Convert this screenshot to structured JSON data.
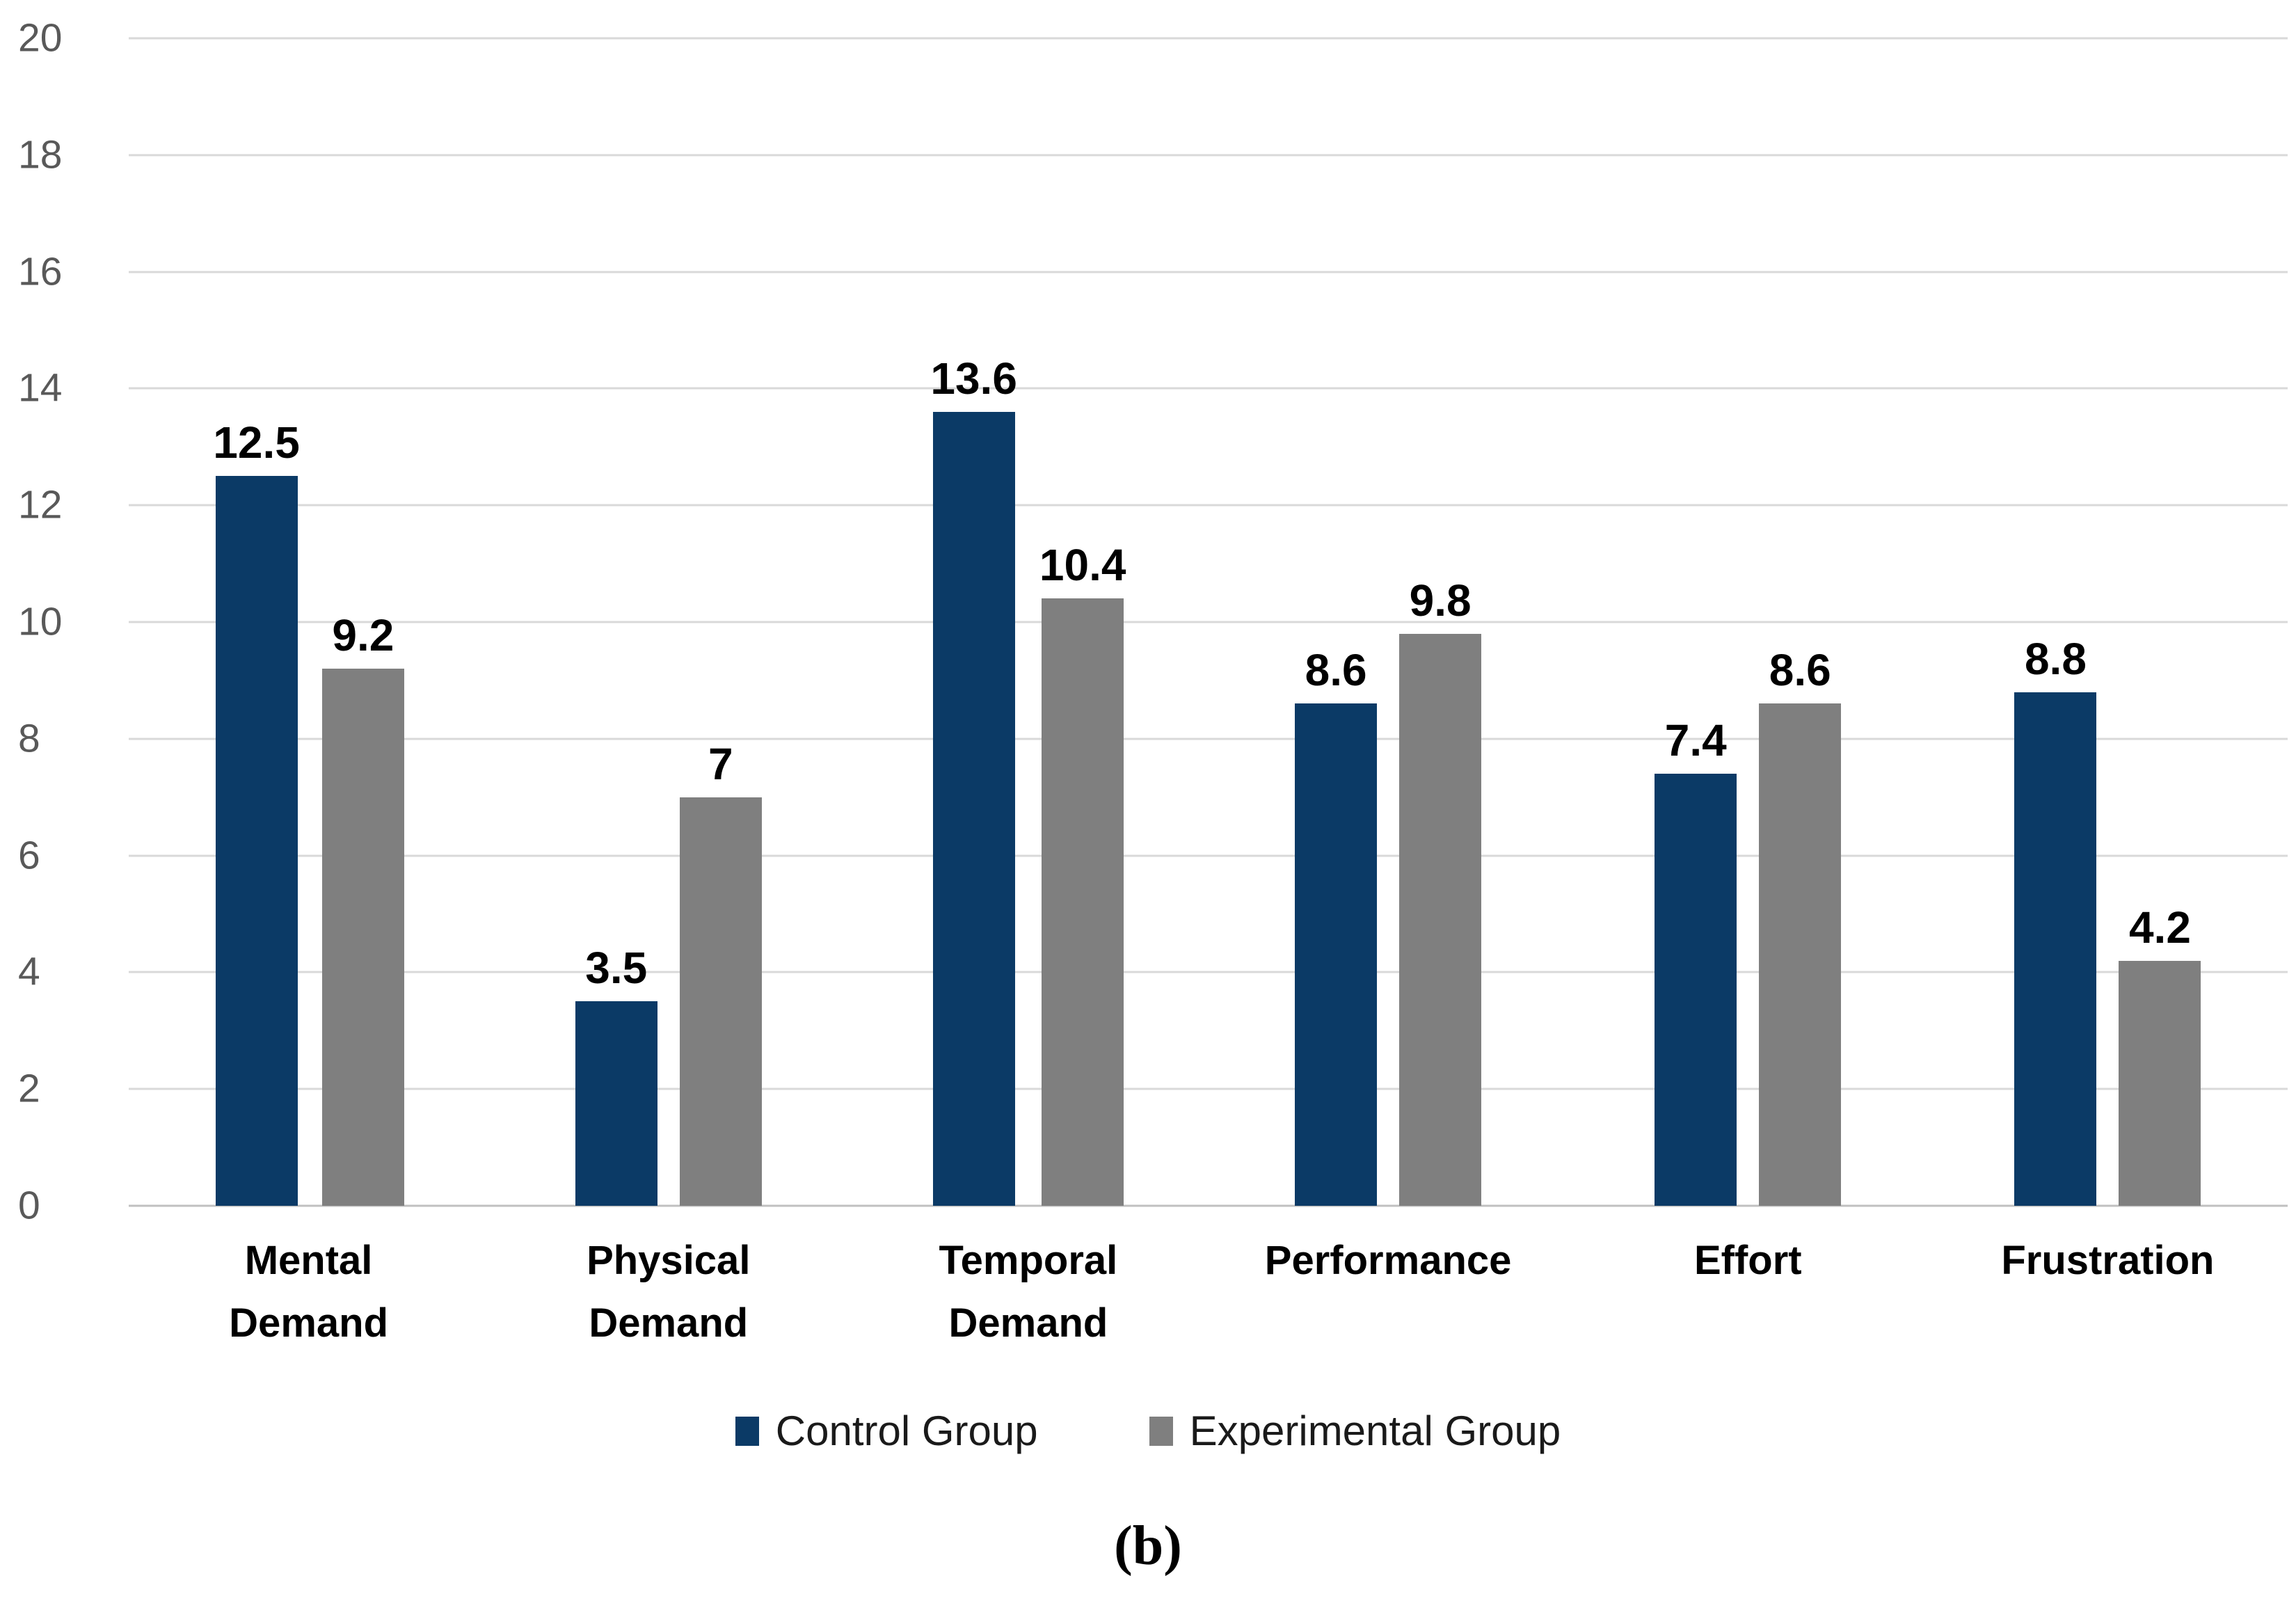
{
  "colors": {
    "series": [
      "#0b3a66",
      "#7f7f7f"
    ],
    "gridline": "#d9d9d9",
    "baseline": "#c0c0c0",
    "axis_text": "#595959",
    "value_label_text": "#000000"
  },
  "chart_data": {
    "type": "bar",
    "categories": [
      "Mental Demand",
      "Physical Demand",
      "Temporal Demand",
      "Performance",
      "Effort",
      "Frustration"
    ],
    "series": [
      {
        "name": "Control Group",
        "values": [
          12.5,
          3.5,
          13.6,
          8.6,
          7.4,
          8.8
        ]
      },
      {
        "name": "Experimental Group",
        "values": [
          9.2,
          7,
          10.4,
          9.8,
          8.6,
          4.2
        ]
      }
    ],
    "title": "",
    "xlabel": "",
    "ylabel": "",
    "ylim": [
      0,
      20
    ],
    "ytick_step": 2,
    "grid": true,
    "legend_position": "bottom"
  },
  "caption": "(b)"
}
